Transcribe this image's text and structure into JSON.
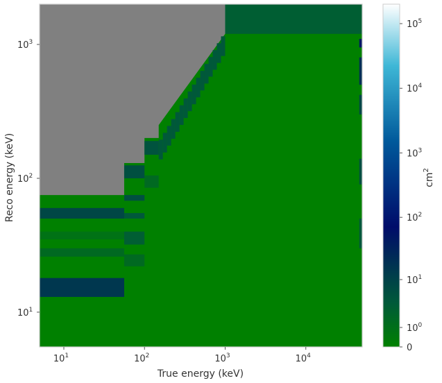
{
  "chart_data": {
    "type": "heatmap",
    "xlabel": "True energy (keV)",
    "ylabel": "Reco energy (keV)",
    "x_scale": "log",
    "y_scale": "log",
    "xlim": [
      5,
      50000
    ],
    "ylim": [
      5.5,
      2000
    ],
    "x_ticks": [
      {
        "value": 10,
        "base": "10",
        "exp": "1"
      },
      {
        "value": 100,
        "base": "10",
        "exp": "2"
      },
      {
        "value": 1000,
        "base": "10",
        "exp": "3"
      },
      {
        "value": 10000,
        "base": "10",
        "exp": "4"
      }
    ],
    "y_ticks": [
      {
        "value": 10,
        "base": "10",
        "exp": "1"
      },
      {
        "value": 100,
        "base": "10",
        "exp": "2"
      },
      {
        "value": 1000,
        "base": "10",
        "exp": "3"
      }
    ],
    "colorbar": {
      "label_base": "cm",
      "label_exp": "2",
      "scale": "symlog",
      "range": [
        0,
        200000
      ],
      "ticks": [
        {
          "value": 0,
          "base": "0",
          "exp": ""
        },
        {
          "value": 1,
          "base": "10",
          "exp": "0"
        },
        {
          "value": 10,
          "base": "10",
          "exp": "1"
        },
        {
          "value": 100,
          "base": "10",
          "exp": "2"
        },
        {
          "value": 1000,
          "base": "10",
          "exp": "3"
        },
        {
          "value": 10000,
          "base": "10",
          "exp": "4"
        },
        {
          "value": 100000,
          "base": "10",
          "exp": "5"
        }
      ],
      "colors": [
        "#008000",
        "#00593a",
        "#000c6a",
        "#00599b",
        "#3eb7d6",
        "#ffffff"
      ]
    },
    "colors": {
      "zero": "#008000",
      "masked": "#808080",
      "axes_edge": "#cccccc"
    },
    "masked_region_points": [
      [
        5,
        75
      ],
      [
        56,
        75
      ],
      [
        56,
        130
      ],
      [
        100,
        130
      ],
      [
        100,
        200
      ],
      [
        150,
        200
      ],
      [
        150,
        250
      ],
      [
        1000,
        1200
      ],
      [
        1000,
        2000
      ],
      [
        5,
        2000
      ]
    ],
    "bands": [
      {
        "x": [
          5,
          56
        ],
        "y": [
          50,
          60
        ],
        "value": 8
      },
      {
        "x": [
          5,
          56
        ],
        "y": [
          13,
          18
        ],
        "value": 15
      },
      {
        "x": [
          5,
          56
        ],
        "y": [
          26,
          30
        ],
        "value": 1.5
      },
      {
        "x": [
          5,
          56
        ],
        "y": [
          35,
          40
        ],
        "value": 0.8
      },
      {
        "x": [
          56,
          100
        ],
        "y": [
          100,
          125
        ],
        "value": 6
      },
      {
        "x": [
          56,
          100
        ],
        "y": [
          68,
          75
        ],
        "value": 6
      },
      {
        "x": [
          56,
          100
        ],
        "y": [
          50,
          55
        ],
        "value": 4
      },
      {
        "x": [
          56,
          100
        ],
        "y": [
          32,
          40
        ],
        "value": 3
      },
      {
        "x": [
          56,
          100
        ],
        "y": [
          22,
          27
        ],
        "value": 1.5
      },
      {
        "x": [
          100,
          150
        ],
        "y": [
          150,
          190
        ],
        "value": 5
      },
      {
        "x": [
          100,
          150
        ],
        "y": [
          85,
          105
        ],
        "value": 1.5
      },
      {
        "x": [
          1000,
          50000
        ],
        "y": [
          1200,
          2000
        ],
        "value": 3
      },
      {
        "x": [
          46000,
          50000
        ],
        "y": [
          30,
          50
        ],
        "value": 4
      },
      {
        "x": [
          46000,
          50000
        ],
        "y": [
          90,
          140
        ],
        "value": 6
      },
      {
        "x": [
          46000,
          50000
        ],
        "y": [
          300,
          420
        ],
        "value": 8
      },
      {
        "x": [
          46000,
          50000
        ],
        "y": [
          500,
          800
        ],
        "value": 20
      },
      {
        "x": [
          46000,
          50000
        ],
        "y": [
          950,
          1100
        ],
        "value": 50
      }
    ],
    "diagonal": {
      "x_start": 150,
      "x_end": 1000,
      "n": 16,
      "value": 4
    }
  }
}
